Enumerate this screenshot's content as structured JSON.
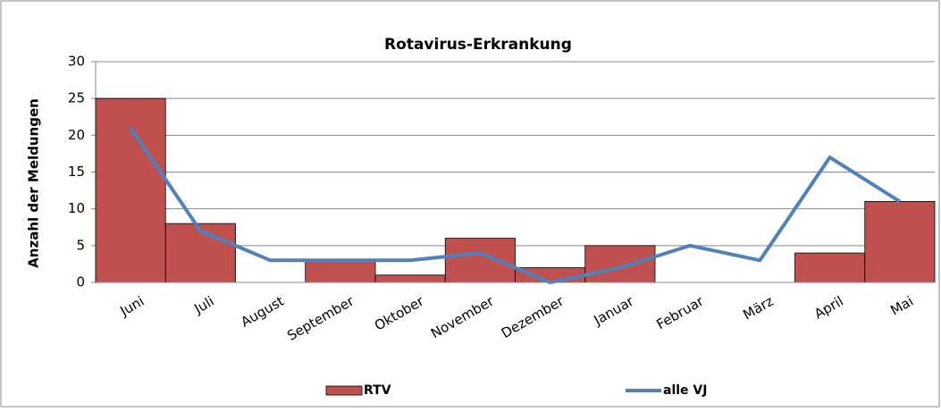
{
  "chart_data": {
    "type": "bar",
    "title": "Rotavirus-Erkrankung",
    "y_label": "Anzahl der Meldungen",
    "categories": [
      "Juni",
      "Juli",
      "August",
      "September",
      "Oktober",
      "November",
      "Dezember",
      "Januar",
      "Februar",
      "März",
      "April",
      "Mai"
    ],
    "series": [
      {
        "name": "RTV",
        "type": "bar",
        "color": "#c0504d",
        "values": [
          25,
          8,
          0,
          3,
          1,
          6,
          2,
          5,
          0,
          0,
          4,
          11
        ]
      },
      {
        "name": "alle VJ",
        "type": "line",
        "color": "#4f81bd",
        "values": [
          21,
          7,
          3,
          3,
          3,
          4,
          0,
          2,
          5,
          3,
          17,
          11
        ]
      }
    ],
    "ylim": [
      0,
      30
    ],
    "yticks": [
      0,
      5,
      10,
      15,
      20,
      25,
      30
    ],
    "grid": true,
    "legend": "bottom"
  }
}
